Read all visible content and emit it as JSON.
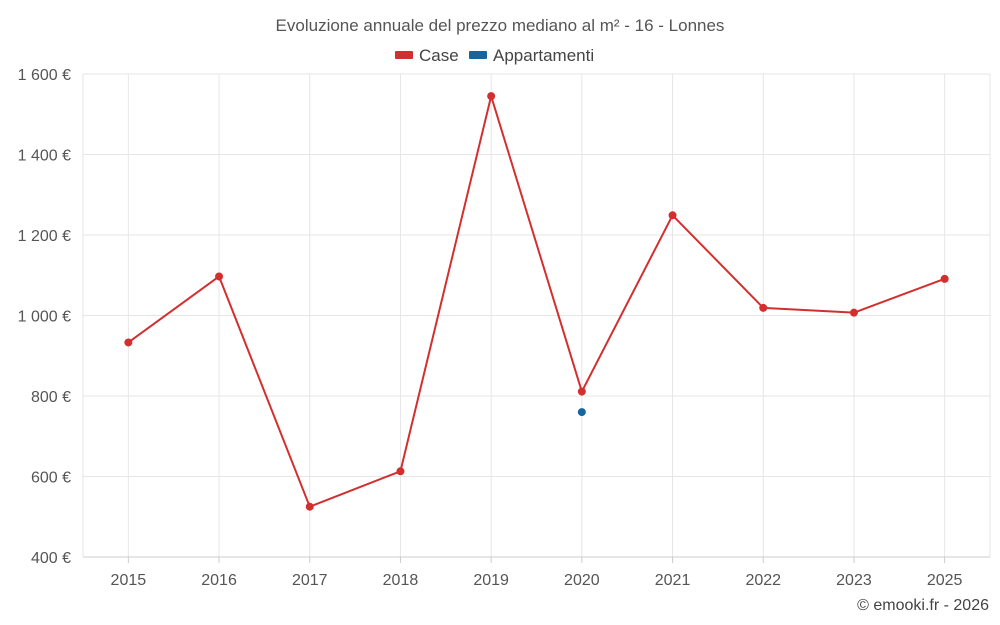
{
  "chart_data": {
    "type": "line",
    "title": "Evoluzione annuale del prezzo mediano al m² - 16 - Lonnes",
    "categories": [
      "2015",
      "2016",
      "2017",
      "2018",
      "2019",
      "2020",
      "2021",
      "2022",
      "2023",
      "2025"
    ],
    "ylim": [
      400,
      1600
    ],
    "y_ticks": [
      400,
      600,
      800,
      1000,
      1200,
      1400,
      1600
    ],
    "y_tick_labels": [
      "400 €",
      "600 €",
      "800 €",
      "1 000 €",
      "1 200 €",
      "1 400 €",
      "1 600 €"
    ],
    "grid": true,
    "legend_position": "top-center",
    "series": [
      {
        "name": "Case",
        "color": "#d32f2f",
        "values": [
          933,
          1097,
          525,
          613,
          1545,
          811,
          1249,
          1019,
          1007,
          1091
        ]
      },
      {
        "name": "Appartamenti",
        "color": "#1565a0",
        "values": [
          null,
          null,
          null,
          null,
          null,
          760,
          null,
          null,
          null,
          null
        ]
      }
    ]
  },
  "credit": "© emooki.fr - 2026"
}
